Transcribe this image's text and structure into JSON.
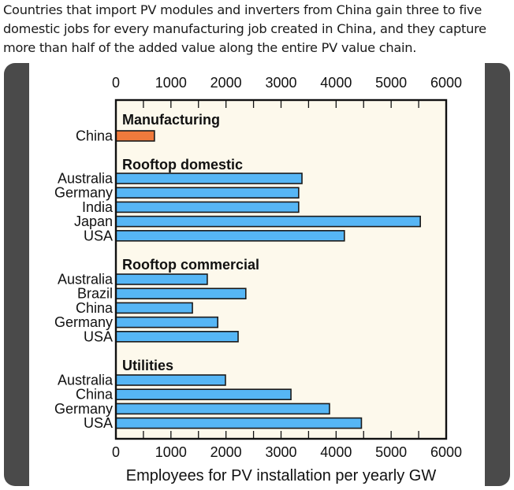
{
  "caption": "Countries that import PV modules and inverters from China gain three to five domestic jobs for every manufacturing job created in China, and they capture more than half of the added value along the entire PV value chain.",
  "chart_data": {
    "type": "bar",
    "orientation": "horizontal",
    "title": "",
    "xlabel": "Employees for PV installation per yearly GW",
    "ylabel": "",
    "xlim": [
      0,
      6000
    ],
    "xticks": [
      0,
      1000,
      2000,
      3000,
      4000,
      5000,
      6000
    ],
    "grid": false,
    "colors": {
      "manufacturing": "#f07a3c",
      "installation": "#56b6f5",
      "plot_background": "#fdf9ec"
    },
    "groups": [
      {
        "name": "Manufacturing",
        "color": "#f07a3c",
        "bars": [
          {
            "label": "China",
            "value": 700
          }
        ]
      },
      {
        "name": "Rooftop domestic",
        "color": "#56b6f5",
        "bars": [
          {
            "label": "Australia",
            "value": 3380
          },
          {
            "label": "Germany",
            "value": 3320
          },
          {
            "label": "India",
            "value": 3320
          },
          {
            "label": "Japan",
            "value": 5530
          },
          {
            "label": "USA",
            "value": 4150
          }
        ]
      },
      {
        "name": "Rooftop commercial",
        "color": "#56b6f5",
        "bars": [
          {
            "label": "Australia",
            "value": 1660
          },
          {
            "label": "Brazil",
            "value": 2360
          },
          {
            "label": "China",
            "value": 1390
          },
          {
            "label": "Germany",
            "value": 1850
          },
          {
            "label": "USA",
            "value": 2220
          }
        ]
      },
      {
        "name": "Utilities",
        "color": "#56b6f5",
        "bars": [
          {
            "label": "Australia",
            "value": 1990
          },
          {
            "label": "China",
            "value": 3180
          },
          {
            "label": "Germany",
            "value": 3880
          },
          {
            "label": "USA",
            "value": 4460
          }
        ]
      }
    ]
  }
}
